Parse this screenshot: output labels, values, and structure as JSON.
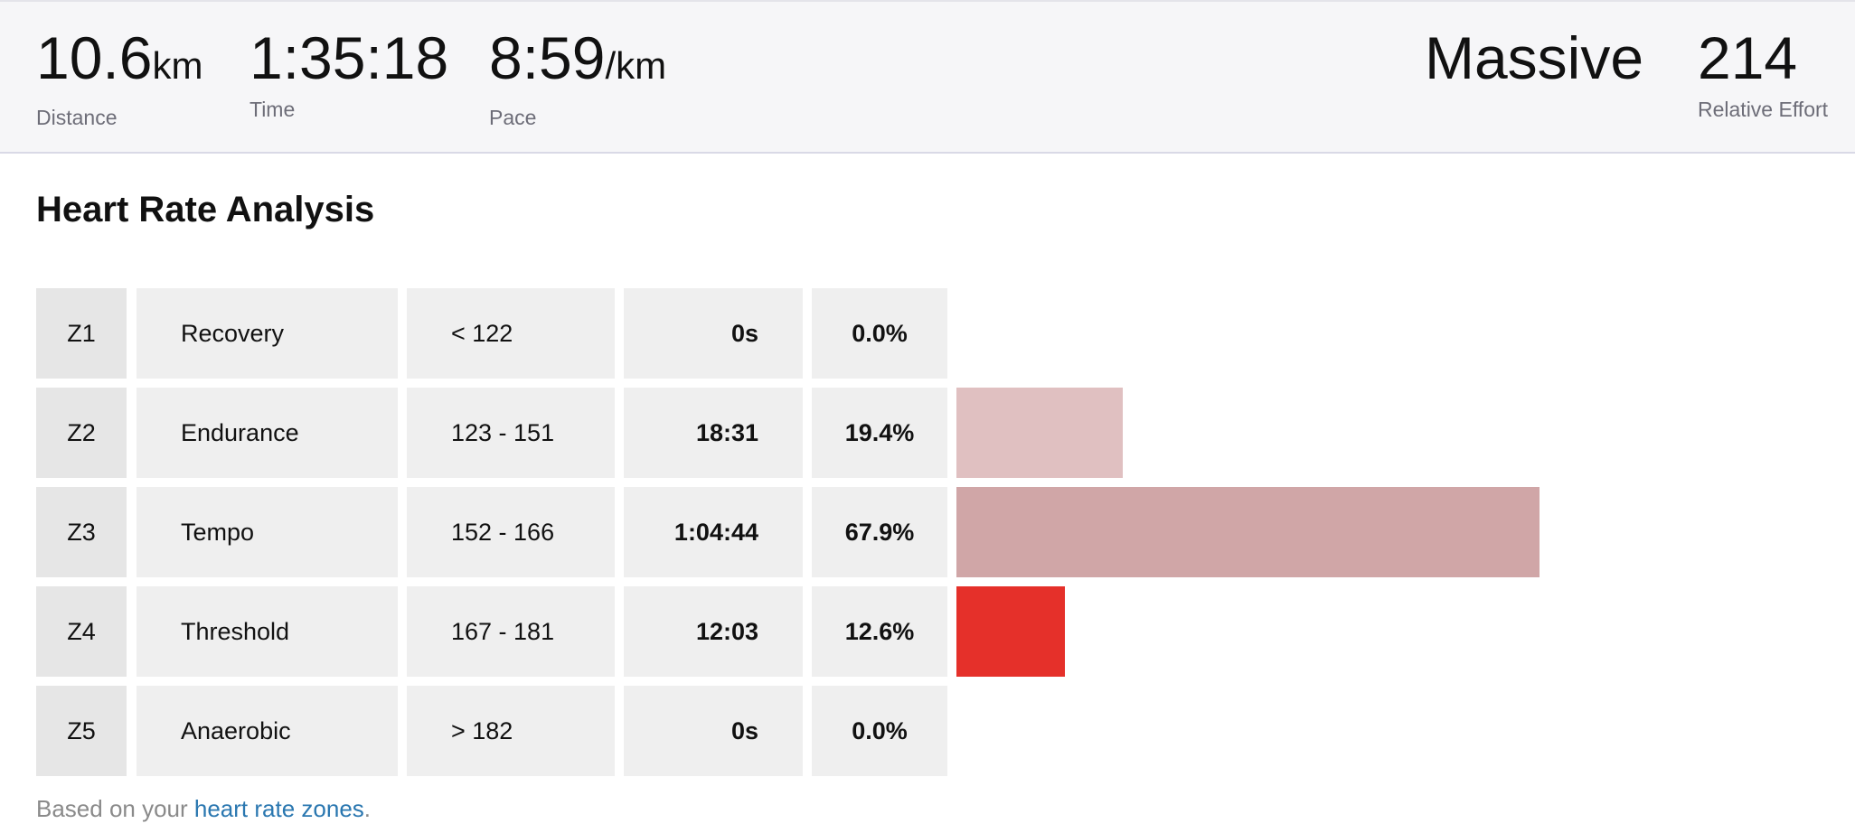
{
  "summary": {
    "distance": {
      "value": "10.6",
      "unit": "km",
      "label": "Distance"
    },
    "time": {
      "value": "1:35:18",
      "label": "Time"
    },
    "pace": {
      "value": "8:59",
      "unit": "/km",
      "label": "Pace"
    },
    "effort": {
      "word": "Massive",
      "value": "214",
      "label": "Relative Effort"
    }
  },
  "section_title": "Heart Rate Analysis",
  "zones": [
    {
      "zone": "Z1",
      "name": "Recovery",
      "range": "< 122",
      "time": "0s",
      "percent": "0.0%",
      "fraction": 0.0,
      "color": "#e0c0c1"
    },
    {
      "zone": "Z2",
      "name": "Endurance",
      "range": "123 - 151",
      "time": "18:31",
      "percent": "19.4%",
      "fraction": 0.194,
      "color": "#e0c0c1"
    },
    {
      "zone": "Z3",
      "name": "Tempo",
      "range": "152 - 166",
      "time": "1:04:44",
      "percent": "67.9%",
      "fraction": 0.679,
      "color": "#d0a6a7"
    },
    {
      "zone": "Z4",
      "name": "Threshold",
      "range": "167 - 181",
      "time": "12:03",
      "percent": "12.6%",
      "fraction": 0.126,
      "color": "#e5302a"
    },
    {
      "zone": "Z5",
      "name": "Anaerobic",
      "range": "> 182",
      "time": "0s",
      "percent": "0.0%",
      "fraction": 0.0,
      "color": "#e0c0c1"
    }
  ],
  "footer": {
    "prefix": "Based on your ",
    "link_text": "heart rate zones",
    "suffix": "."
  }
}
